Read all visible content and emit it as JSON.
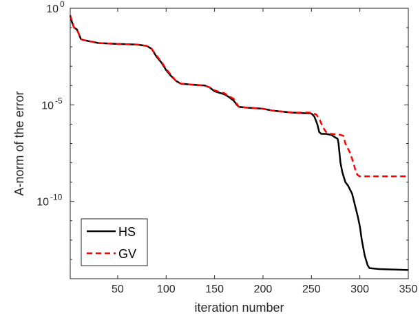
{
  "chart_data": {
    "type": "line",
    "title": "",
    "xlabel": "iteration number",
    "ylabel": "A-norm of the error",
    "xlim": [
      1,
      350
    ],
    "ylim_log10": [
      -14,
      0
    ],
    "y_scale": "log",
    "x_ticks": [
      50,
      100,
      150,
      200,
      250,
      300,
      350
    ],
    "y_ticks": [
      {
        "exp": 0,
        "base": "10",
        "power": "0"
      },
      {
        "exp": -5,
        "base": "10",
        "power": "-5"
      },
      {
        "exp": -10,
        "base": "10",
        "power": "-10"
      }
    ],
    "grid": false,
    "legend_position": "bottom-left",
    "series": [
      {
        "name": "HS",
        "color": "#000000",
        "style": "solid",
        "log10_values": [
          [
            1,
            -0.4
          ],
          [
            3,
            -0.75
          ],
          [
            5,
            -1.0
          ],
          [
            8,
            -1.1
          ],
          [
            10,
            -1.35
          ],
          [
            12,
            -1.6
          ],
          [
            15,
            -1.65
          ],
          [
            20,
            -1.7
          ],
          [
            30,
            -1.8
          ],
          [
            50,
            -1.85
          ],
          [
            70,
            -1.88
          ],
          [
            80,
            -1.95
          ],
          [
            85,
            -2.1
          ],
          [
            90,
            -2.5
          ],
          [
            95,
            -2.8
          ],
          [
            100,
            -3.2
          ],
          [
            105,
            -3.5
          ],
          [
            110,
            -3.75
          ],
          [
            115,
            -3.9
          ],
          [
            125,
            -3.95
          ],
          [
            140,
            -4.0
          ],
          [
            145,
            -4.1
          ],
          [
            150,
            -4.3
          ],
          [
            160,
            -4.45
          ],
          [
            165,
            -4.6
          ],
          [
            170,
            -4.8
          ],
          [
            173,
            -5.0
          ],
          [
            175,
            -5.1
          ],
          [
            185,
            -5.15
          ],
          [
            200,
            -5.2
          ],
          [
            210,
            -5.3
          ],
          [
            230,
            -5.4
          ],
          [
            250,
            -5.45
          ],
          [
            253,
            -5.6
          ],
          [
            256,
            -6.0
          ],
          [
            258,
            -6.4
          ],
          [
            260,
            -6.5
          ],
          [
            265,
            -6.5
          ],
          [
            270,
            -6.55
          ],
          [
            272,
            -6.6
          ],
          [
            275,
            -6.7
          ],
          [
            277,
            -6.75
          ],
          [
            278,
            -7.0
          ],
          [
            280,
            -8.0
          ],
          [
            282,
            -8.5
          ],
          [
            285,
            -9.0
          ],
          [
            288,
            -9.2
          ],
          [
            292,
            -9.6
          ],
          [
            295,
            -10.2
          ],
          [
            298,
            -10.8
          ],
          [
            300,
            -11.3
          ],
          [
            302,
            -12.0
          ],
          [
            305,
            -12.8
          ],
          [
            308,
            -13.3
          ],
          [
            310,
            -13.45
          ],
          [
            320,
            -13.5
          ],
          [
            350,
            -13.55
          ]
        ]
      },
      {
        "name": "GV",
        "color": "#ff0000",
        "style": "dashed",
        "log10_values": [
          [
            1,
            -0.35
          ],
          [
            3,
            -0.7
          ],
          [
            5,
            -1.0
          ],
          [
            8,
            -1.1
          ],
          [
            10,
            -1.35
          ],
          [
            12,
            -1.6
          ],
          [
            15,
            -1.65
          ],
          [
            20,
            -1.7
          ],
          [
            30,
            -1.8
          ],
          [
            50,
            -1.85
          ],
          [
            70,
            -1.88
          ],
          [
            80,
            -1.95
          ],
          [
            85,
            -2.1
          ],
          [
            90,
            -2.45
          ],
          [
            95,
            -2.75
          ],
          [
            100,
            -3.15
          ],
          [
            105,
            -3.45
          ],
          [
            110,
            -3.75
          ],
          [
            115,
            -3.9
          ],
          [
            125,
            -3.95
          ],
          [
            140,
            -4.0
          ],
          [
            145,
            -4.1
          ],
          [
            150,
            -4.25
          ],
          [
            160,
            -4.4
          ],
          [
            165,
            -4.55
          ],
          [
            170,
            -4.7
          ],
          [
            173,
            -4.95
          ],
          [
            175,
            -5.1
          ],
          [
            185,
            -5.15
          ],
          [
            200,
            -5.2
          ],
          [
            210,
            -5.3
          ],
          [
            230,
            -5.4
          ],
          [
            250,
            -5.4
          ],
          [
            255,
            -5.5
          ],
          [
            258,
            -5.7
          ],
          [
            260,
            -5.95
          ],
          [
            263,
            -6.25
          ],
          [
            265,
            -6.4
          ],
          [
            270,
            -6.5
          ],
          [
            280,
            -6.55
          ],
          [
            283,
            -6.6
          ],
          [
            285,
            -7.0
          ],
          [
            287,
            -7.2
          ],
          [
            290,
            -7.5
          ],
          [
            292,
            -7.8
          ],
          [
            294,
            -8.1
          ],
          [
            296,
            -8.5
          ],
          [
            298,
            -8.65
          ],
          [
            300,
            -8.7
          ],
          [
            350,
            -8.7
          ]
        ]
      }
    ]
  }
}
